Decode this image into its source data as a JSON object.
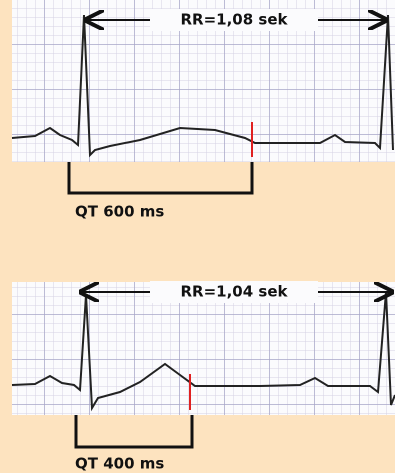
{
  "strips": [
    {
      "rr_label": "RR=1,08 sek",
      "qt_label": "QT 600 ms"
    },
    {
      "rr_label": "RR=1,04 sek",
      "qt_label": "QT 400 ms"
    }
  ]
}
